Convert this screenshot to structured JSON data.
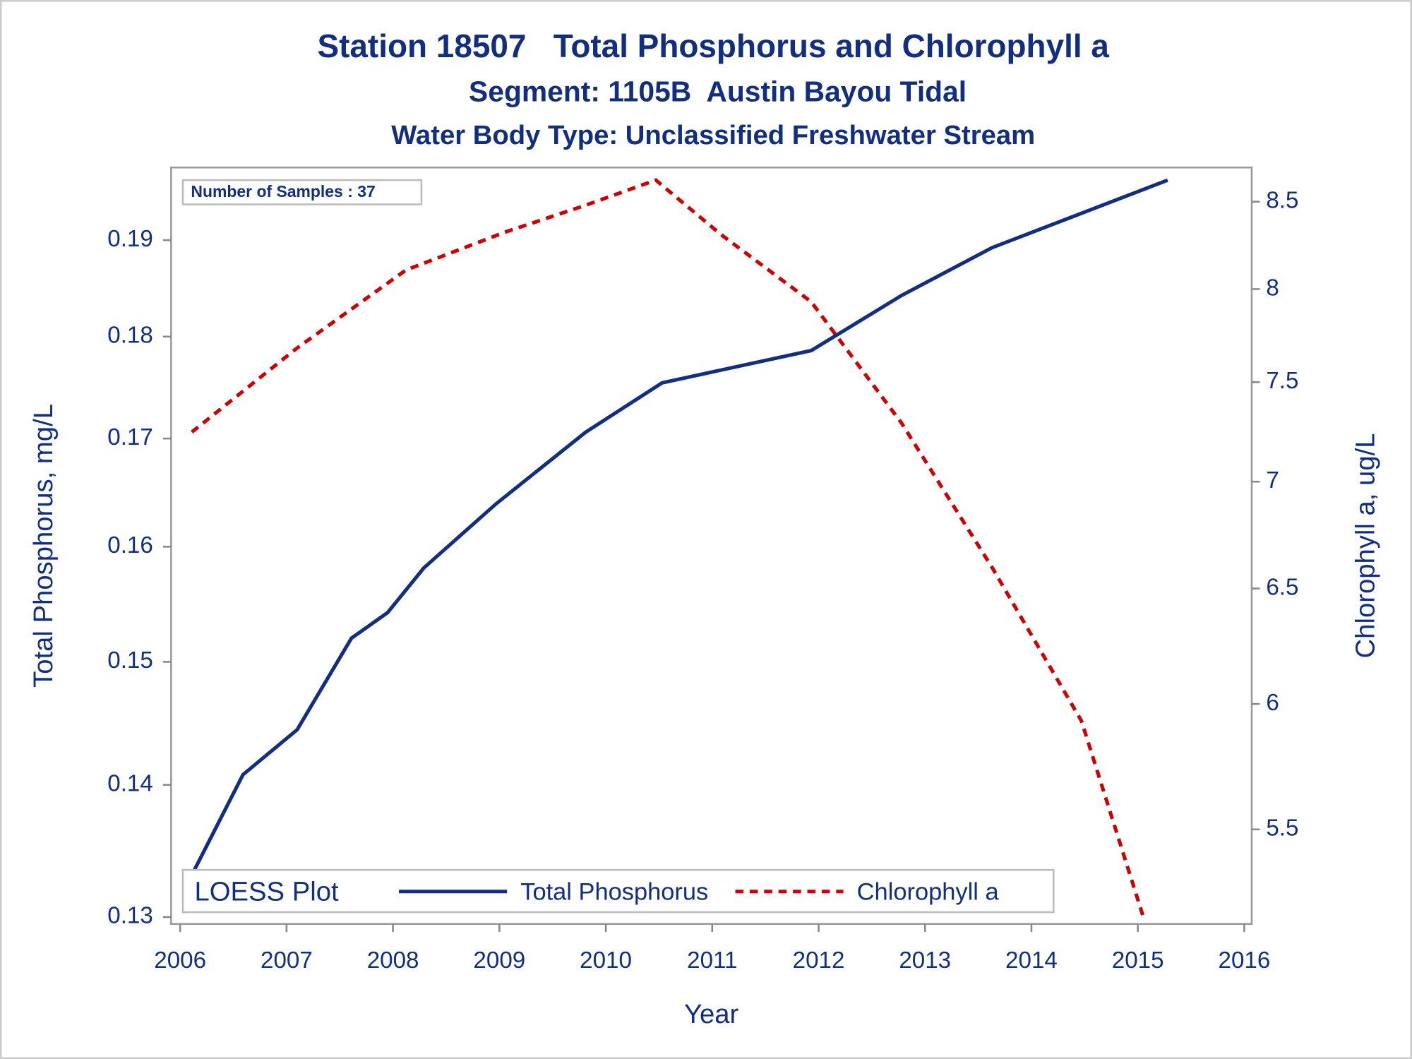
{
  "chart_data": {
    "type": "line",
    "title": "Station 18507   Total Phosphorus and Chlorophyll a",
    "subtitle": "Segment: 1105B  Austin Bayou Tidal",
    "subtitle2": "Water Body Type: Unclassified Freshwater Stream",
    "annotation": "Number of Samples : 37",
    "x_label": "Year",
    "y_label": "Total Phosphorus, mg/L",
    "y2_label": "Chlorophyll a, ug/L",
    "legend_title": "LOESS Plot",
    "legend": "bottom",
    "xlim": [
      2005.915,
      2016.07
    ],
    "xticks": [
      2006,
      2007,
      2008,
      2009,
      2010,
      2011,
      2012,
      2013,
      2014,
      2015,
      2016
    ],
    "ylim": [
      0.1295,
      0.1979
    ],
    "ylog": true,
    "yticks": [
      0.13,
      0.14,
      0.15,
      0.16,
      0.17,
      0.18,
      0.19
    ],
    "y2lim": [
      5.151,
      8.704
    ],
    "y2log": true,
    "y2ticks": [
      5.5,
      6,
      6.5,
      7,
      7.5,
      8,
      8.5
    ],
    "series": [
      {
        "name": "Total Phosphorus",
        "color": "#112e81",
        "dash": false,
        "x": [
          2006.11,
          2006.59,
          2007.1,
          2007.61,
          2007.95,
          2008.29,
          2008.97,
          2009.81,
          2010.53,
          2011.93,
          2012.78,
          2013.63,
          2015.28
        ],
        "values": [
          0.1331,
          0.1408,
          0.1444,
          0.152,
          0.1542,
          0.1581,
          0.1639,
          0.1706,
          0.1754,
          0.1786,
          0.1842,
          0.1892,
          0.1965
        ]
      },
      {
        "name": "Chlorophyll a",
        "color": "#cc0000",
        "dash": true,
        "axis": "y2",
        "x": [
          2006.11,
          2007.1,
          2008.12,
          2009.05,
          2009.81,
          2010.47,
          2011.08,
          2011.93,
          2012.78,
          2013.63,
          2014.47,
          2015.05
        ],
        "values": [
          7.245,
          7.68,
          8.106,
          8.322,
          8.479,
          8.628,
          8.31,
          7.93,
          7.29,
          6.596,
          5.93,
          5.177
        ]
      }
    ]
  }
}
